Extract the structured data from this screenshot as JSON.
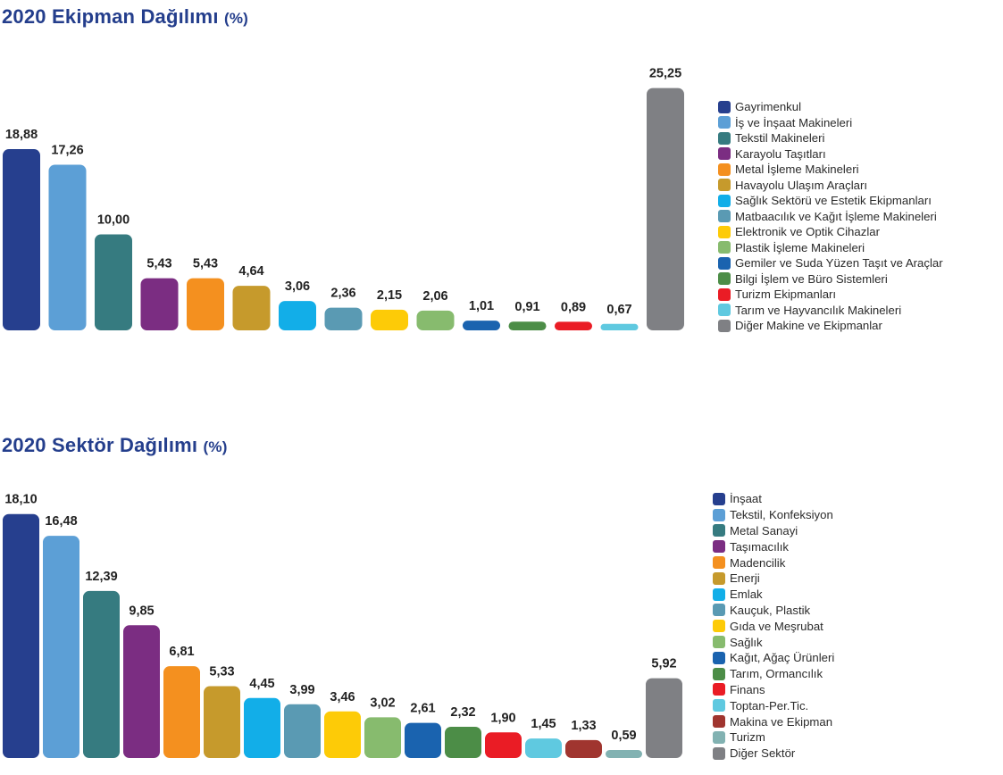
{
  "chart_data": [
    {
      "type": "bar",
      "title": "2020 Ekipman Dağılımı",
      "unit": "(%)",
      "legend_position": "right",
      "grid": false,
      "categories": [
        "Gayrimenkul",
        "İş ve İnşaat Makineleri",
        "Tekstil Makineleri",
        "Karayolu Taşıtları",
        "Metal İşleme Makineleri",
        "Havayolu Ulaşım Araçları",
        "Sağlık Sektörü ve Estetik Ekipmanları",
        "Matbaacılık ve Kağıt İşleme Makineleri",
        "Elektronik ve Optik Cihazlar",
        "Plastik İşleme Makineleri",
        "Gemiler ve Suda Yüzen Taşıt ve Araçlar",
        "Bilgi İşlem ve Büro Sistemleri",
        "Turizm Ekipmanları",
        "Tarım ve Hayvancılık Makineleri",
        "Diğer Makine ve Ekipmanlar"
      ],
      "values": [
        18.88,
        17.26,
        10.0,
        5.43,
        5.43,
        4.64,
        3.06,
        2.36,
        2.15,
        2.06,
        1.01,
        0.91,
        0.89,
        0.67,
        25.25
      ],
      "value_labels": [
        "18,88",
        "17,26",
        "10,00",
        "5,43",
        "5,43",
        "4,64",
        "3,06",
        "2,36",
        "2,15",
        "2,06",
        "1,01",
        "0,91",
        "0,89",
        "0,67",
        "25,25"
      ],
      "colors": [
        "#263f8e",
        "#5c9fd6",
        "#367b80",
        "#7b2d82",
        "#f4901f",
        "#c69a2c",
        "#12aee8",
        "#5a9ab3",
        "#fdcb07",
        "#87bb6e",
        "#1a63af",
        "#4c8d47",
        "#ea1c25",
        "#5fc9e0",
        "#7f8084"
      ]
    },
    {
      "type": "bar",
      "title": "2020 Sektör Dağılımı",
      "unit": "(%)",
      "legend_position": "right",
      "grid": false,
      "categories": [
        "İnşaat",
        "Tekstil, Konfeksiyon",
        "Metal Sanayi",
        "Taşımacılık",
        "Madencilik",
        "Enerji",
        "Emlak",
        "Kauçuk, Plastik",
        "Gıda ve Meşrubat",
        "Sağlık",
        "Kağıt, Ağaç Ürünleri",
        "Tarım, Ormancılık",
        "Finans",
        "Toptan-Per.Tic.",
        "Makina ve Ekipman",
        "Turizm",
        "Diğer Sektör"
      ],
      "values": [
        18.1,
        16.48,
        12.39,
        9.85,
        6.81,
        5.33,
        4.45,
        3.99,
        3.46,
        3.02,
        2.61,
        2.32,
        1.9,
        1.45,
        1.33,
        0.59,
        5.92
      ],
      "value_labels": [
        "18,10",
        "16,48",
        "12,39",
        "9,85",
        "6,81",
        "5,33",
        "4,45",
        "3,99",
        "3,46",
        "3,02",
        "2,61",
        "2,32",
        "1,90",
        "1,45",
        "1,33",
        "0,59",
        "5,92"
      ],
      "colors": [
        "#263f8e",
        "#5c9fd6",
        "#367b80",
        "#7b2d82",
        "#f4901f",
        "#c69a2c",
        "#12aee8",
        "#5a9ab3",
        "#fdcb07",
        "#87bb6e",
        "#1a63af",
        "#4c8d47",
        "#ea1c25",
        "#5fc9e0",
        "#a0352f",
        "#82b2b2",
        "#7f8084"
      ]
    }
  ]
}
